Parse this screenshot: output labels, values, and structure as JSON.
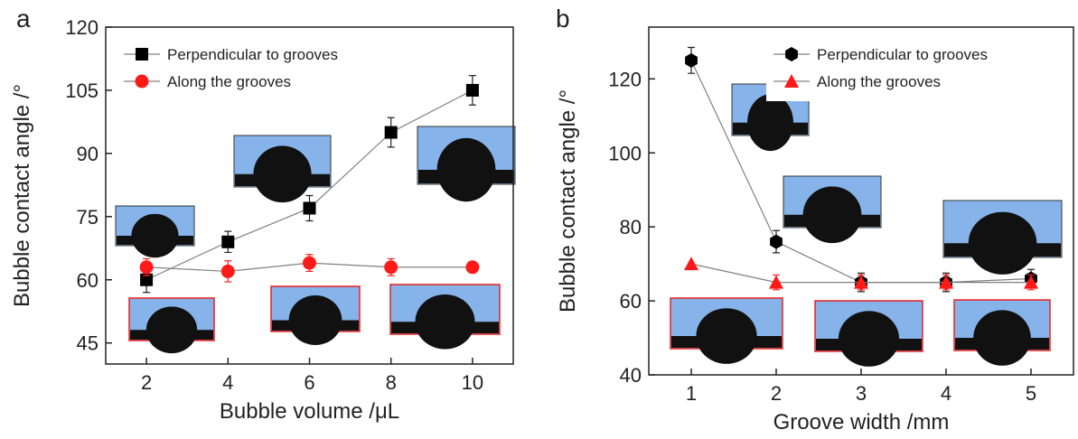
{
  "chart_data": [
    {
      "type": "line",
      "panel_label": "a",
      "x_label": "Bubble volume /μL",
      "y_label": "Bubble contact angle /°",
      "x": [
        2,
        4,
        6,
        8,
        10
      ],
      "xlim": [
        1,
        11
      ],
      "xticks": [
        2,
        4,
        6,
        8,
        10
      ],
      "ylim": [
        40,
        120
      ],
      "yticks": [
        45,
        60,
        75,
        90,
        105,
        120
      ],
      "legend": "upper left",
      "line_color": "#808080",
      "series": [
        {
          "name": "Perpendicular to grooves",
          "color": "#000000",
          "marker": "square",
          "values": [
            60,
            69,
            77,
            95,
            105
          ],
          "errors": [
            3,
            2.5,
            3,
            3.5,
            3.5
          ]
        },
        {
          "name": "Along the grooves",
          "color": "#ff1a1a",
          "marker": "circle",
          "values": [
            63,
            62,
            64,
            63,
            63
          ],
          "errors": [
            2,
            2.5,
            2,
            2,
            0
          ]
        }
      ]
    },
    {
      "type": "line",
      "panel_label": "b",
      "x_label": "Groove width /mm",
      "y_label": "Bubble contact angle /°",
      "x": [
        1,
        2,
        3,
        4,
        5
      ],
      "xlim": [
        0.5,
        5.5
      ],
      "xticks": [
        1,
        2,
        3,
        4,
        5
      ],
      "ylim": [
        40,
        134
      ],
      "yticks": [
        40,
        60,
        80,
        100,
        120
      ],
      "legend": "upper right",
      "line_color": "#808080",
      "series": [
        {
          "name": "Perpendicular to grooves",
          "color": "#000000",
          "marker": "hexagon",
          "values": [
            125,
            76,
            65,
            65,
            66
          ],
          "errors": [
            3.5,
            3,
            2.5,
            2.5,
            2.5
          ]
        },
        {
          "name": "Along the grooves",
          "color": "#ff1a1a",
          "marker": "triangle",
          "values": [
            70,
            65,
            65,
            65,
            65
          ],
          "errors": [
            0,
            2,
            2,
            2,
            2
          ]
        }
      ]
    }
  ]
}
